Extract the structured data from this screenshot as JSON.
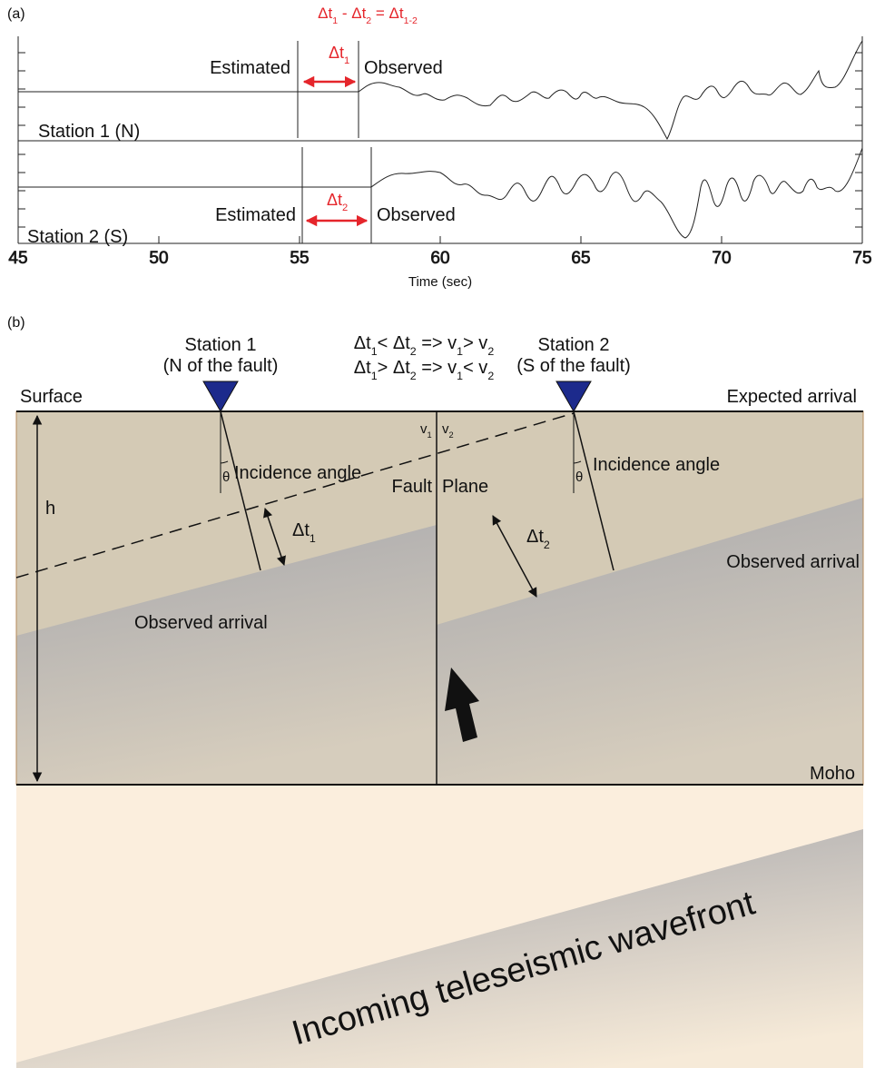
{
  "panel_a": {
    "label": "(a)",
    "equation": [
      "Δt",
      "1",
      " - Δt",
      "2",
      " = Δt",
      "1-2"
    ],
    "station1": {
      "name": "Station 1 (N)",
      "estimated": "Estimated",
      "observed": "Observed",
      "delta": [
        "Δt",
        "1"
      ]
    },
    "station2": {
      "name": "Station 2 (S)",
      "estimated": "Estimated",
      "observed": "Observed",
      "delta": [
        "Δt",
        "2"
      ]
    },
    "xticks": [
      45,
      50,
      55,
      60,
      65,
      70,
      75
    ],
    "xlabel": "Time (sec)"
  },
  "panel_b": {
    "label": "(b)",
    "station1": [
      "Station 1",
      "(N of the fault)"
    ],
    "station2": [
      "Station 2",
      "(S of the fault)"
    ],
    "relation1": [
      "Δt",
      "1",
      "< Δt",
      "2",
      " => v",
      "1",
      "> v",
      "2"
    ],
    "relation2": [
      "Δt",
      "1",
      "> Δt",
      "2",
      " => v",
      "1",
      "< v",
      "2"
    ],
    "surface": "Surface",
    "expected": "Expected arrival",
    "incidence_left": "Incidence angle",
    "incidence_right": "Incidence angle",
    "theta_left": "θ",
    "theta_right": "θ",
    "fault": [
      "Fault",
      "Plane"
    ],
    "v_left": [
      "v",
      "1"
    ],
    "v_right": [
      "v",
      "2"
    ],
    "h": "h",
    "dt_left": [
      "Δt",
      "1"
    ],
    "dt_right": [
      "Δt",
      "2"
    ],
    "observed_left": "Observed arrival",
    "observed_right": "Observed arrival",
    "moho": "Moho",
    "wavefront": "Incoming teleseismic wavefront"
  }
}
